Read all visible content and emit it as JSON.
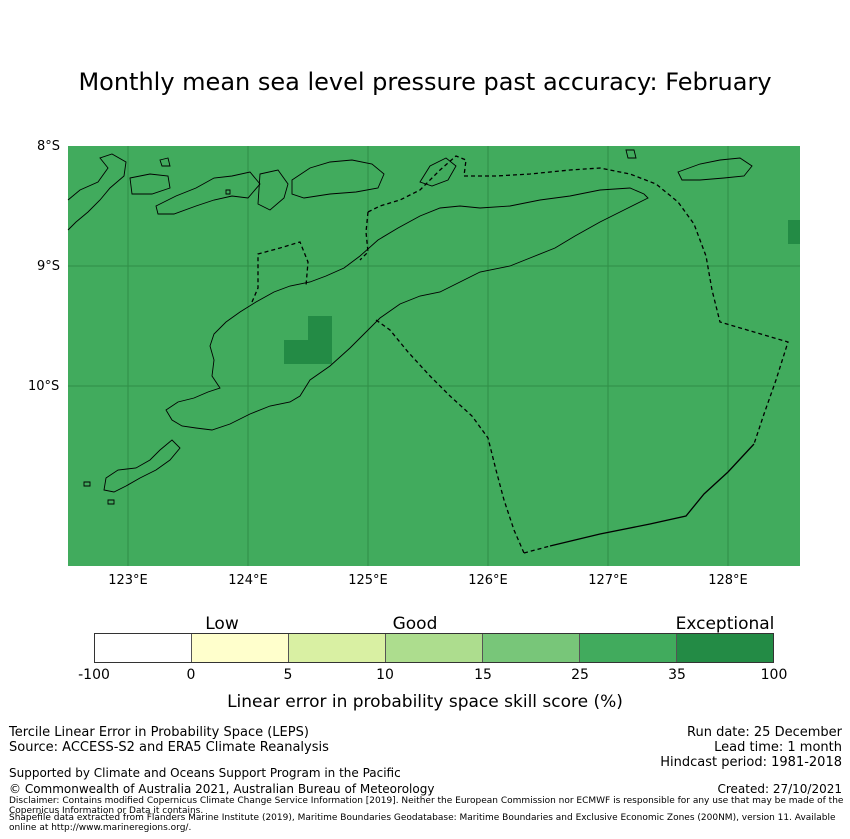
{
  "title": "Monthly mean sea level pressure past accuracy: February",
  "map": {
    "lat_labels": [
      "8°S",
      "9°S",
      "10°S"
    ],
    "lon_labels": [
      "123°E",
      "124°E",
      "125°E",
      "126°E",
      "127°E",
      "128°E"
    ],
    "ocean_color": "#41ab5d",
    "dark_color": "#238b45"
  },
  "colorbar": {
    "categories": [
      "Low",
      "Good",
      "Exceptional"
    ],
    "ticks": [
      "-100",
      "0",
      "5",
      "10",
      "15",
      "25",
      "35",
      "100"
    ],
    "colors": [
      "#ffffff",
      "#ffffcc",
      "#d9f0a3",
      "#addd8e",
      "#78c679",
      "#41ab5d",
      "#238b45"
    ],
    "label": "Linear error in probability space skill score (%)"
  },
  "footer": {
    "method": "Tercile Linear Error in Probability Space (LEPS)",
    "source": "Source: ACCESS-S2 and ERA5 Climate Reanalysis",
    "run_date": "Run date: 25 December",
    "lead_time": "Lead time: 1 month",
    "hindcast": "Hindcast period: 1981-2018",
    "support": "Supported by Climate and Oceans Support Program in the Pacific",
    "copyright": "© Commonwealth of Australia 2021, Australian Bureau of Meteorology",
    "created": "Created: 27/10/2021",
    "disclaimer": "Disclaimer: Contains modified Copernicus Climate Change Service Information [2019]. Neither the European Commission nor ECMWF is responsible for any use that may be made of the Copernicus Information or Data it contains.",
    "shapefile": "Shapefile data extracted from Flanders Marine Institute (2019), Maritime Boundaries Geodatabase: Maritime Boundaries and Exclusive Economic Zones (200NM), version 11. Available online at http://www.marineregions.org/."
  }
}
